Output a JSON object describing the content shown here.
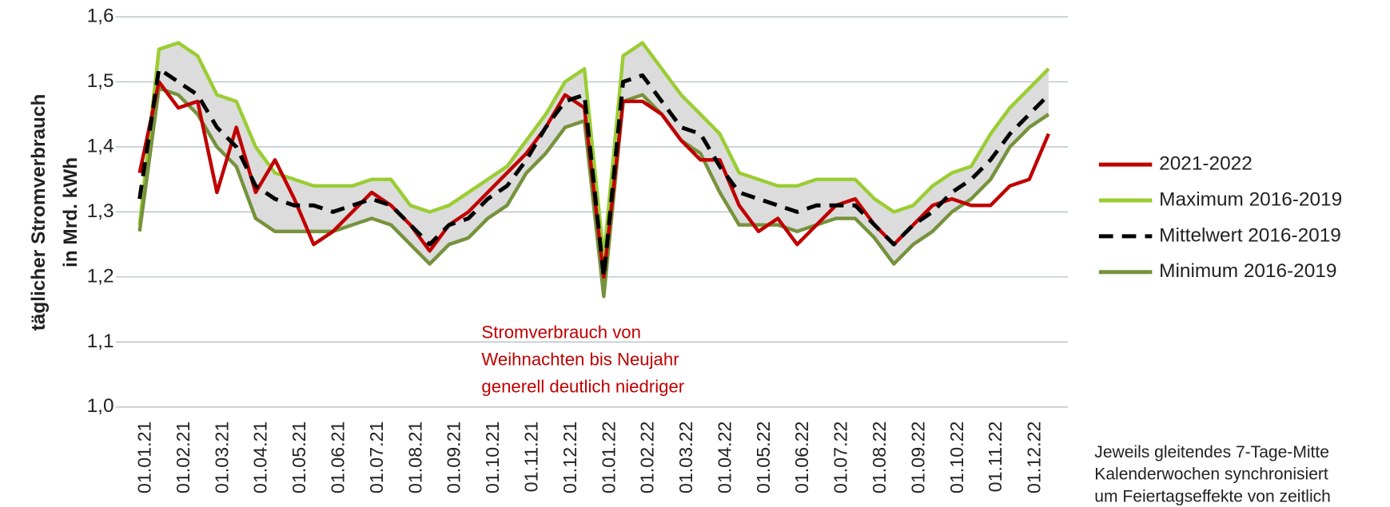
{
  "chart_data": {
    "type": "line",
    "y_label_lines": [
      "täglicher Stromverbrauch",
      "in Mrd. kWh"
    ],
    "annotation_lines": [
      "Stromverbrauch von",
      "Weihnachten bis Neujahr",
      "generell deutlich niedriger"
    ],
    "annotation_color": "#c00000",
    "note_lines": [
      "Jeweils gleitendes 7-Tage-Mitte",
      "Kalenderwochen synchronisiert",
      "um Feiertagseffekte von zeitlich"
    ],
    "categories": [
      "01.01.21",
      null,
      "01.02.21",
      null,
      "01.03.21",
      null,
      "01.04.21",
      null,
      "01.05.21",
      null,
      "01.06.21",
      null,
      "01.07.21",
      null,
      "01.08.21",
      null,
      "01.09.21",
      null,
      "01.10.21",
      null,
      "01.11.21",
      null,
      "01.12.21",
      null,
      "01.01.22",
      null,
      "01.02.22",
      null,
      "01.03.22",
      null,
      "01.04.22",
      null,
      "01.05.22",
      null,
      "01.06.22",
      null,
      "01.07.22",
      null,
      "01.08.22",
      null,
      "01.09.22",
      null,
      "01.10.22",
      null,
      "01.11.22",
      null,
      "01.12.22",
      null
    ],
    "series": [
      {
        "name": "2021-2022",
        "color": "#c00000",
        "dashed": false,
        "values": [
          1.36,
          1.5,
          1.46,
          1.47,
          1.33,
          1.43,
          1.33,
          1.38,
          1.32,
          1.25,
          1.27,
          1.3,
          1.33,
          1.31,
          1.28,
          1.24,
          1.28,
          1.3,
          1.33,
          1.36,
          1.39,
          1.43,
          1.48,
          1.46,
          1.2,
          1.47,
          1.47,
          1.45,
          1.41,
          1.38,
          1.38,
          1.31,
          1.27,
          1.29,
          1.25,
          1.28,
          1.31,
          1.32,
          1.28,
          1.25,
          1.28,
          1.31,
          1.32,
          1.31,
          1.31,
          1.34,
          1.35,
          1.42
        ]
      },
      {
        "name": "Maximum 2016-2019",
        "color": "#9acd32",
        "dashed": false,
        "values": [
          1.28,
          1.55,
          1.56,
          1.54,
          1.48,
          1.47,
          1.4,
          1.36,
          1.35,
          1.34,
          1.34,
          1.34,
          1.35,
          1.35,
          1.31,
          1.3,
          1.31,
          1.33,
          1.35,
          1.37,
          1.41,
          1.45,
          1.5,
          1.52,
          1.23,
          1.54,
          1.56,
          1.52,
          1.48,
          1.45,
          1.42,
          1.36,
          1.35,
          1.34,
          1.34,
          1.35,
          1.35,
          1.35,
          1.32,
          1.3,
          1.31,
          1.34,
          1.36,
          1.37,
          1.42,
          1.46,
          1.49,
          1.52
        ]
      },
      {
        "name": "Mittelwert 2016-2019",
        "color": "#000000",
        "dashed": true,
        "values": [
          1.32,
          1.52,
          1.5,
          1.48,
          1.43,
          1.4,
          1.34,
          1.32,
          1.31,
          1.31,
          1.3,
          1.31,
          1.32,
          1.31,
          1.28,
          1.25,
          1.28,
          1.29,
          1.32,
          1.34,
          1.38,
          1.43,
          1.47,
          1.48,
          1.2,
          1.5,
          1.51,
          1.47,
          1.43,
          1.42,
          1.37,
          1.33,
          1.32,
          1.31,
          1.3,
          1.31,
          1.31,
          1.31,
          1.28,
          1.25,
          1.28,
          1.3,
          1.33,
          1.35,
          1.38,
          1.42,
          1.45,
          1.48
        ]
      },
      {
        "name": "Minimum 2016-2019",
        "color": "#76923c",
        "dashed": false,
        "values": [
          1.27,
          1.49,
          1.48,
          1.45,
          1.4,
          1.37,
          1.29,
          1.27,
          1.27,
          1.27,
          1.27,
          1.28,
          1.29,
          1.28,
          1.25,
          1.22,
          1.25,
          1.26,
          1.29,
          1.31,
          1.36,
          1.39,
          1.43,
          1.44,
          1.17,
          1.47,
          1.48,
          1.45,
          1.41,
          1.39,
          1.33,
          1.28,
          1.28,
          1.28,
          1.27,
          1.28,
          1.29,
          1.29,
          1.26,
          1.22,
          1.25,
          1.27,
          1.3,
          1.32,
          1.35,
          1.4,
          1.43,
          1.45
        ]
      }
    ],
    "range_fill": "#dcdcdc",
    "ylim": [
      1.0,
      1.6
    ],
    "yticks": [
      {
        "value": 1.0,
        "label": "1,0"
      },
      {
        "value": 1.1,
        "label": "1,1"
      },
      {
        "value": 1.2,
        "label": "1,2"
      },
      {
        "value": 1.3,
        "label": "1,3"
      },
      {
        "value": 1.4,
        "label": "1,4"
      },
      {
        "value": 1.5,
        "label": "1,5"
      },
      {
        "value": 1.6,
        "label": "1,6"
      }
    ],
    "grid": true,
    "legend": "right"
  }
}
